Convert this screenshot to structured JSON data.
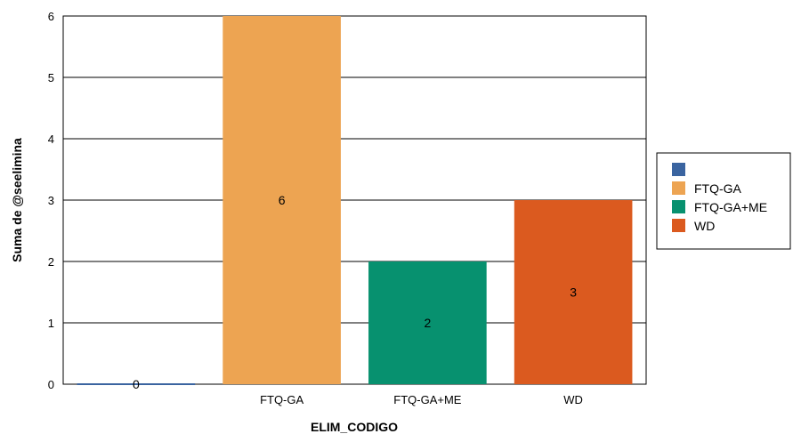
{
  "chart_data": {
    "type": "bar",
    "categories": [
      "",
      "FTQ-GA",
      "FTQ-GA+ME",
      "WD"
    ],
    "values": [
      0,
      6,
      2,
      3
    ],
    "data_labels": [
      "0",
      "6",
      "2",
      "3"
    ],
    "colors": [
      "#3a64a0",
      "#eda452",
      "#07916f",
      "#db5a1f"
    ],
    "xlabel": "ELIM_CODIGO",
    "ylabel": "Suma de @seelimina",
    "ylim": [
      0,
      6
    ],
    "yticks": [
      0,
      1,
      2,
      3,
      4,
      5,
      6
    ],
    "grid": true,
    "legend": {
      "placement": "right",
      "entries": [
        "",
        "FTQ-GA",
        "FTQ-GA+ME",
        "WD"
      ]
    }
  }
}
